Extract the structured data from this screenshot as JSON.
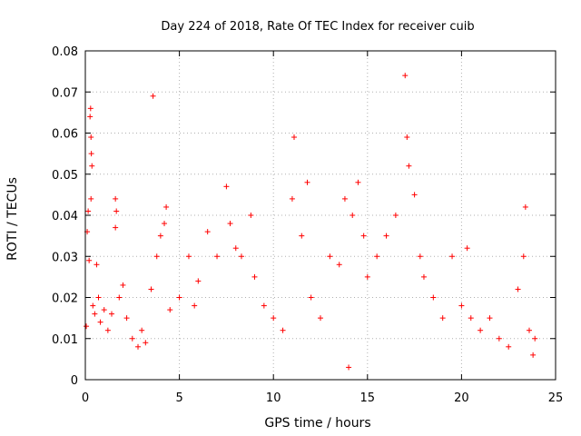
{
  "chart_data": {
    "type": "scatter",
    "title": "Day 224 of 2018, Rate Of TEC Index for receiver cuib",
    "xlabel": "GPS time / hours",
    "ylabel": "ROTI / TECUs",
    "xlim": [
      0,
      25
    ],
    "ylim": [
      0,
      0.08
    ],
    "x_ticks": [
      0,
      5,
      10,
      15,
      20,
      25
    ],
    "y_ticks": [
      0,
      0.01,
      0.02,
      0.03,
      0.04,
      0.05,
      0.06,
      0.07,
      0.08
    ],
    "x_tick_labels": [
      "0",
      "5",
      "10",
      "15",
      "20",
      "25"
    ],
    "y_tick_labels": [
      "0",
      "0.01",
      "0.02",
      "0.03",
      "0.04",
      "0.05",
      "0.06",
      "0.07",
      "0.08"
    ],
    "grid": true,
    "marker": "+",
    "marker_color": "#ff0000",
    "series": [
      {
        "points": [
          [
            0.05,
            0.013
          ],
          [
            0.1,
            0.036
          ],
          [
            0.15,
            0.041
          ],
          [
            0.2,
            0.029
          ],
          [
            0.25,
            0.064
          ],
          [
            0.28,
            0.066
          ],
          [
            0.3,
            0.059
          ],
          [
            0.32,
            0.055
          ],
          [
            0.35,
            0.052
          ],
          [
            0.3,
            0.044
          ],
          [
            0.4,
            0.018
          ],
          [
            0.5,
            0.016
          ],
          [
            0.6,
            0.028
          ],
          [
            0.7,
            0.02
          ],
          [
            0.8,
            0.014
          ],
          [
            1.0,
            0.017
          ],
          [
            1.2,
            0.012
          ],
          [
            1.4,
            0.016
          ],
          [
            1.6,
            0.044
          ],
          [
            1.65,
            0.041
          ],
          [
            1.6,
            0.037
          ],
          [
            1.8,
            0.02
          ],
          [
            2.0,
            0.023
          ],
          [
            2.2,
            0.015
          ],
          [
            2.5,
            0.01
          ],
          [
            2.8,
            0.008
          ],
          [
            3.0,
            0.012
          ],
          [
            3.2,
            0.009
          ],
          [
            3.5,
            0.022
          ],
          [
            3.6,
            0.069
          ],
          [
            3.8,
            0.03
          ],
          [
            4.0,
            0.035
          ],
          [
            4.2,
            0.038
          ],
          [
            4.3,
            0.042
          ],
          [
            4.5,
            0.017
          ],
          [
            5.0,
            0.02
          ],
          [
            5.5,
            0.03
          ],
          [
            5.8,
            0.018
          ],
          [
            6.0,
            0.024
          ],
          [
            6.5,
            0.036
          ],
          [
            7.0,
            0.03
          ],
          [
            7.5,
            0.047
          ],
          [
            7.7,
            0.038
          ],
          [
            8.0,
            0.032
          ],
          [
            8.3,
            0.03
          ],
          [
            8.8,
            0.04
          ],
          [
            9.0,
            0.025
          ],
          [
            9.5,
            0.018
          ],
          [
            10.0,
            0.015
          ],
          [
            10.5,
            0.012
          ],
          [
            11.0,
            0.044
          ],
          [
            11.1,
            0.059
          ],
          [
            11.5,
            0.035
          ],
          [
            11.8,
            0.048
          ],
          [
            12.0,
            0.02
          ],
          [
            12.5,
            0.015
          ],
          [
            13.0,
            0.03
          ],
          [
            13.5,
            0.028
          ],
          [
            13.8,
            0.044
          ],
          [
            14.0,
            0.003
          ],
          [
            14.2,
            0.04
          ],
          [
            14.5,
            0.048
          ],
          [
            14.8,
            0.035
          ],
          [
            15.0,
            0.025
          ],
          [
            15.5,
            0.03
          ],
          [
            16.0,
            0.035
          ],
          [
            16.5,
            0.04
          ],
          [
            17.0,
            0.074
          ],
          [
            17.1,
            0.059
          ],
          [
            17.2,
            0.052
          ],
          [
            17.5,
            0.045
          ],
          [
            17.8,
            0.03
          ],
          [
            18.0,
            0.025
          ],
          [
            18.5,
            0.02
          ],
          [
            19.0,
            0.015
          ],
          [
            19.5,
            0.03
          ],
          [
            20.0,
            0.018
          ],
          [
            20.3,
            0.032
          ],
          [
            20.5,
            0.015
          ],
          [
            21.0,
            0.012
          ],
          [
            21.5,
            0.015
          ],
          [
            22.0,
            0.01
          ],
          [
            22.5,
            0.008
          ],
          [
            23.0,
            0.022
          ],
          [
            23.4,
            0.042
          ],
          [
            23.3,
            0.03
          ],
          [
            23.6,
            0.012
          ],
          [
            23.8,
            0.006
          ],
          [
            23.9,
            0.01
          ]
        ]
      }
    ]
  }
}
